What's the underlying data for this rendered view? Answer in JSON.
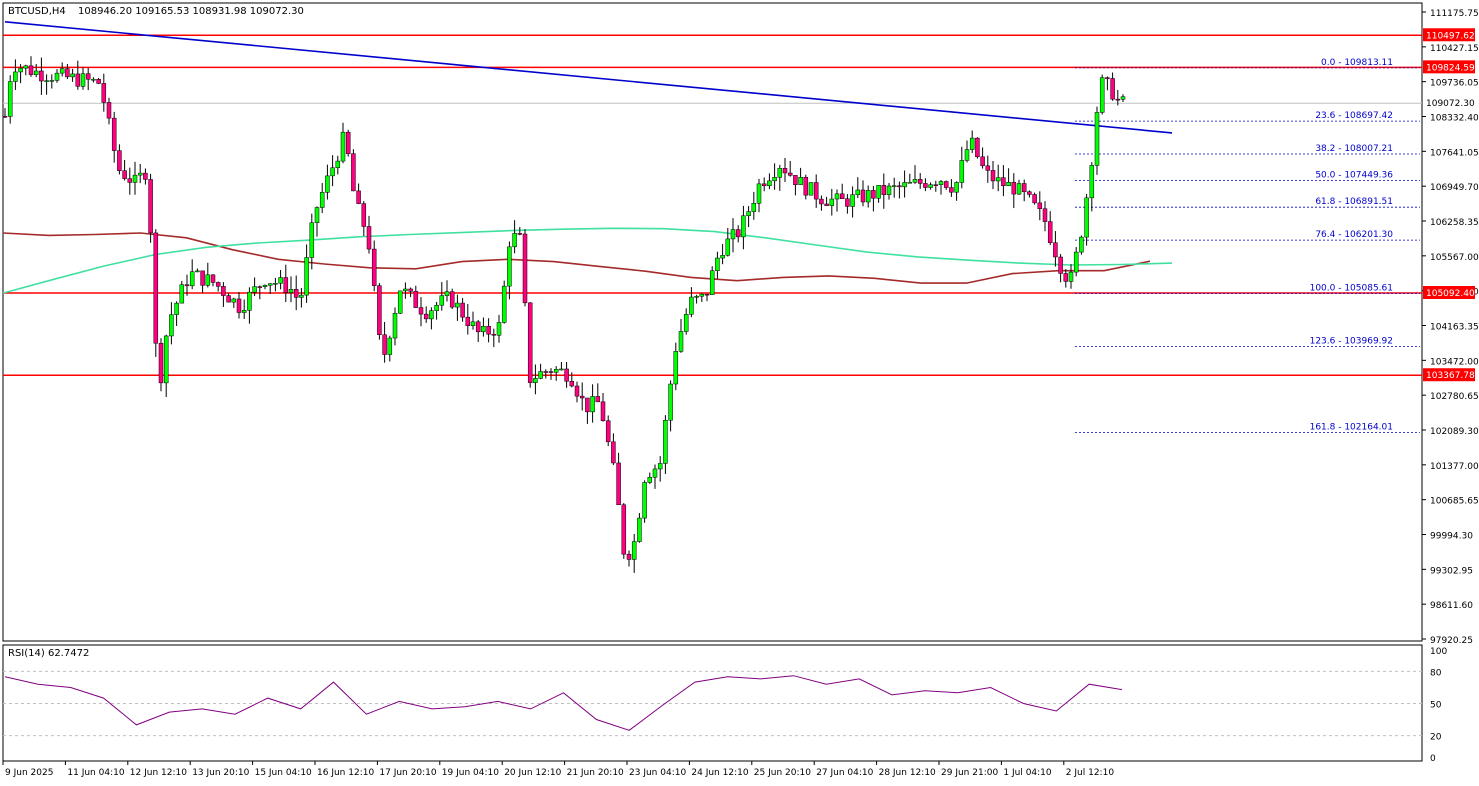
{
  "header": {
    "symbol": "BTCUSD,H4",
    "ohlc": "108946.20 109165.53 108931.98 109072.30"
  },
  "rsi_panel": {
    "label": "RSI(14) 62.7472",
    "levels": [
      80,
      50,
      20
    ],
    "axis_labels": [
      "100",
      "80",
      "50",
      "20",
      "0"
    ],
    "line_color": "#800080"
  },
  "colors": {
    "bull": "#00ff00",
    "bear": "#ff0080",
    "support_resistance": "#ff0000",
    "trendline": "#0000cd",
    "ma_fast": "#40e0a0",
    "ma_slow": "#a52a2a",
    "fib": "#0000cd"
  },
  "chart_data": {
    "type": "candlestick",
    "y_axis": {
      "range": [
        97920,
        111300
      ],
      "tick_labels": [
        "111175.75",
        "110427.15",
        "109736.05",
        "108332.40",
        "107641.05",
        "106949.70",
        "106258.35",
        "105567.00",
        "104854.70",
        "104163.35",
        "103472.00",
        "102780.65",
        "102089.30",
        "101377.00",
        "100685.65",
        "99994.30",
        "99302.95",
        "98611.60",
        "97920.25"
      ]
    },
    "x_axis": {
      "tick_labels": [
        "9 Jun 2025",
        "11 Jun 04:10",
        "12 Jun 12:10",
        "13 Jun 20:10",
        "15 Jun 04:10",
        "16 Jun 12:10",
        "17 Jun 20:10",
        "19 Jun 04:10",
        "20 Jun 12:10",
        "21 Jun 20:10",
        "23 Jun 04:10",
        "24 Jun 12:10",
        "25 Jun 20:10",
        "27 Jun 04:10",
        "28 Jun 12:10",
        "29 Jun 21:00",
        "1 Jul 04:10",
        "2 Jul 12:10"
      ]
    },
    "current_price": 109072.3,
    "horizontal_levels": [
      {
        "price": 110497.62,
        "label": "110497.62"
      },
      {
        "price": 109824.59,
        "label": "109824.59"
      },
      {
        "price": 105092.4,
        "label": "105092.40"
      },
      {
        "price": 103367.78,
        "label": "103367.78"
      }
    ],
    "fibonacci": [
      {
        "label": "0.0 - 109813.11",
        "price": 109813.11
      },
      {
        "label": "23.6 - 108697.42",
        "price": 108697.42
      },
      {
        "label": "38.2 - 108007.21",
        "price": 108007.21
      },
      {
        "label": "50.0 - 107449.36",
        "price": 107449.36
      },
      {
        "label": "61.8 - 106891.51",
        "price": 106891.51
      },
      {
        "label": "76.4 - 106201.30",
        "price": 106201.3
      },
      {
        "label": "100.0 - 105085.61",
        "price": 105085.61
      },
      {
        "label": "123.6 - 103969.92",
        "price": 103969.92
      },
      {
        "label": "161.8 - 102164.01",
        "price": 102164.01
      }
    ],
    "trendline": {
      "start_price": 110780,
      "end_price": 108450
    },
    "ma_fast": [
      105090,
      105380,
      105660,
      105900,
      106050,
      106140,
      106200,
      106270,
      106320,
      106360,
      106400,
      106430,
      106450,
      106440,
      106380,
      106250,
      106100,
      105950,
      105850,
      105780,
      105720,
      105680,
      105690,
      105720
    ],
    "ma_slow": [
      106350,
      106300,
      106320,
      106350,
      106250,
      106000,
      105800,
      105700,
      105620,
      105600,
      105750,
      105800,
      105750,
      105650,
      105550,
      105420,
      105350,
      105420,
      105450,
      105400,
      105300,
      105300,
      105500,
      105560,
      105560,
      105760
    ],
    "rsi": [
      75,
      68,
      65,
      55,
      30,
      42,
      45,
      40,
      55,
      45,
      70,
      40,
      52,
      45,
      47,
      52,
      45,
      60,
      35,
      25,
      48,
      70,
      75,
      73,
      76,
      68,
      73,
      58,
      62,
      60,
      65,
      50,
      43,
      68,
      63
    ]
  }
}
